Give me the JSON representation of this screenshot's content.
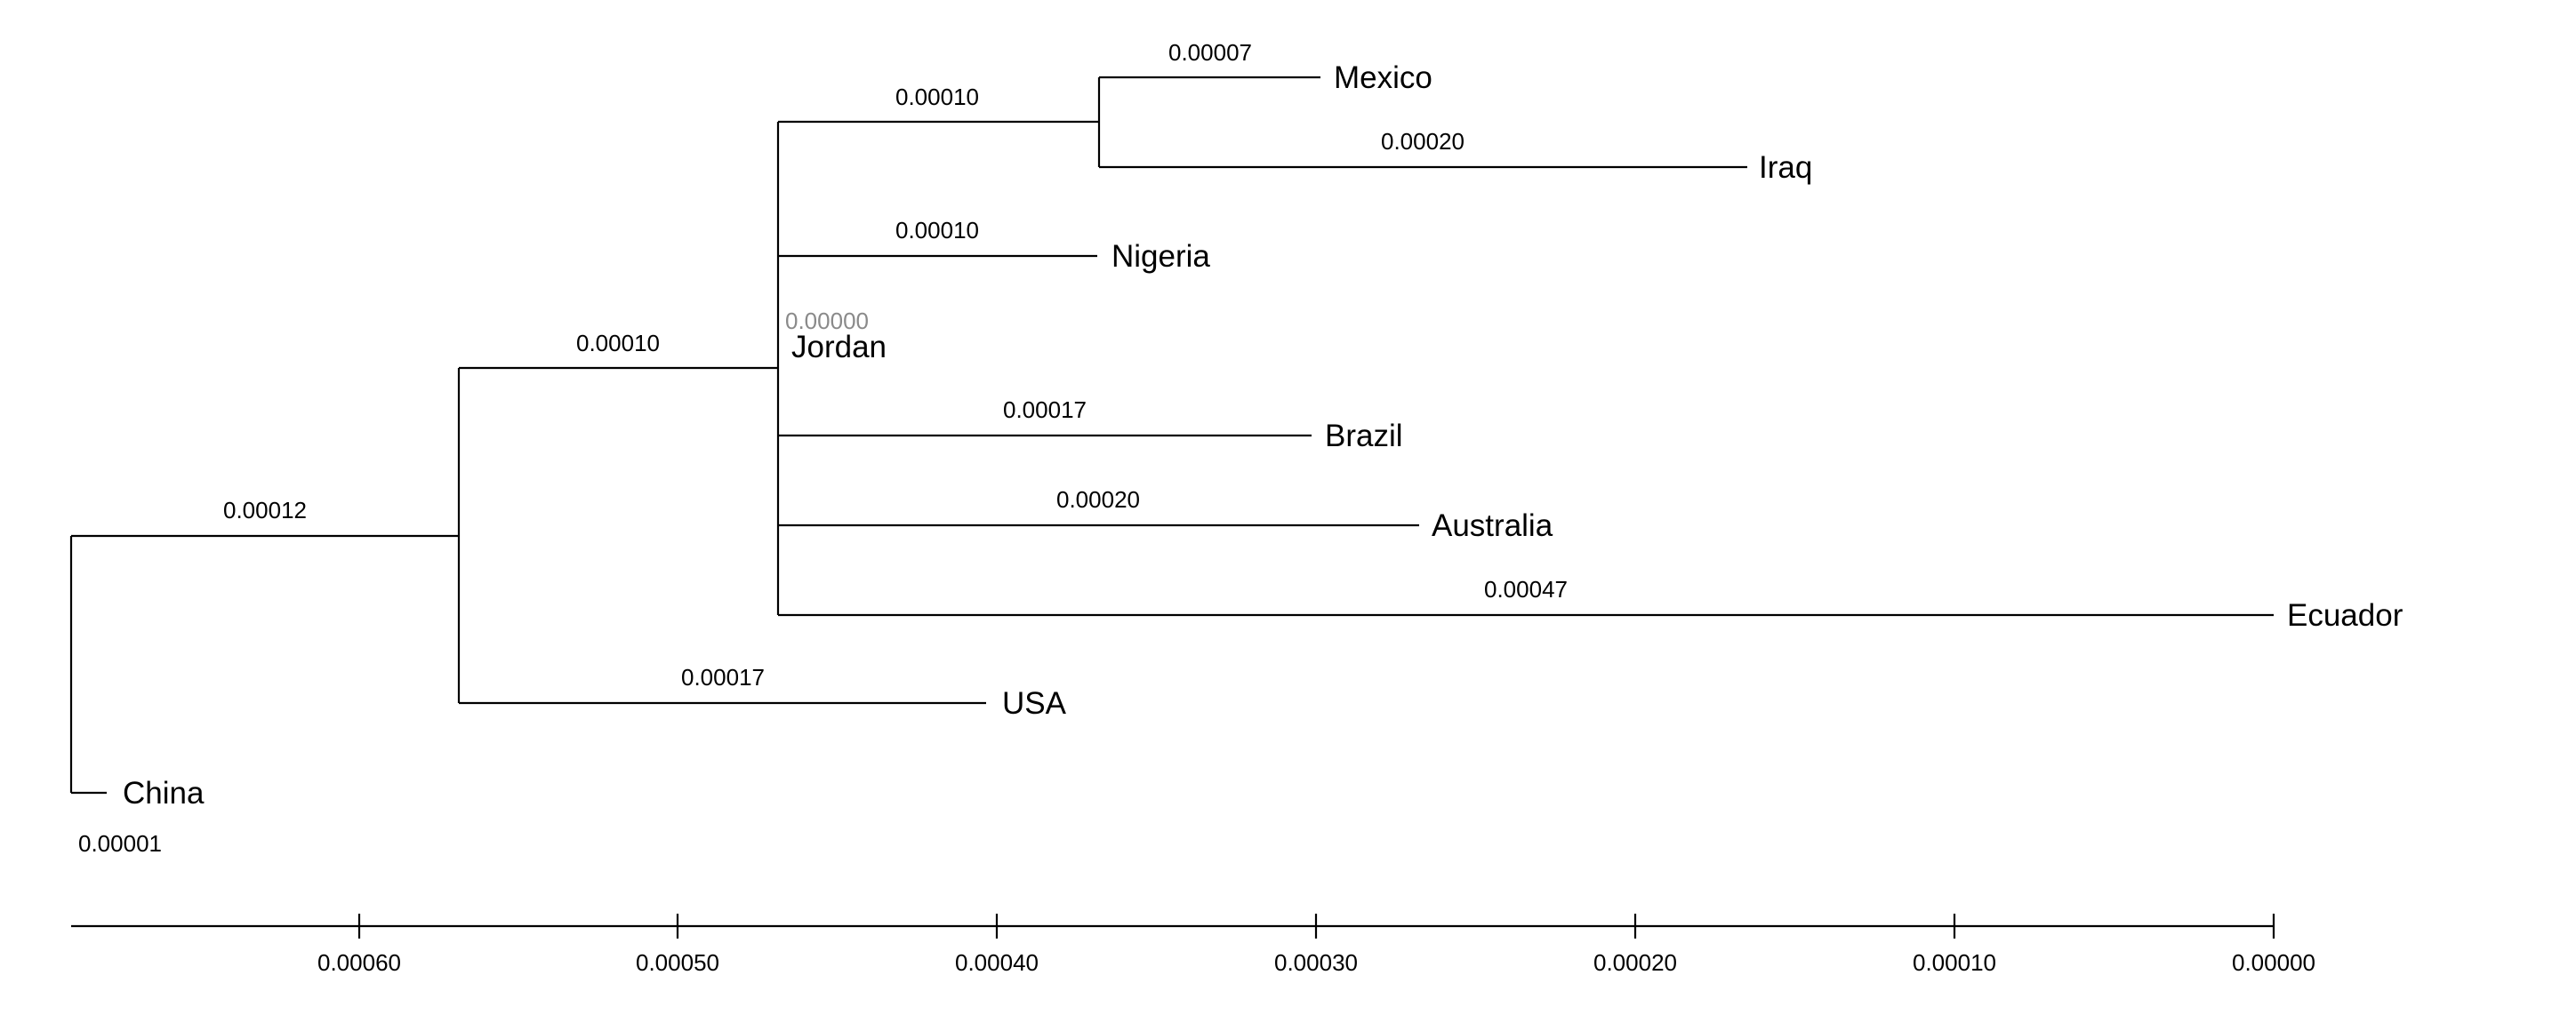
{
  "tree": {
    "leaves": [
      {
        "id": "mexico",
        "name": "Mexico",
        "branch_length_label": "0.00007"
      },
      {
        "id": "iraq",
        "name": "Iraq",
        "branch_length_label": "0.00020"
      },
      {
        "id": "nigeria",
        "name": "Nigeria",
        "branch_length_label": "0.00010"
      },
      {
        "id": "jordan",
        "name": "Jordan",
        "branch_length_label": "0.00000"
      },
      {
        "id": "brazil",
        "name": "Brazil",
        "branch_length_label": "0.00017"
      },
      {
        "id": "australia",
        "name": "Australia",
        "branch_length_label": "0.00020"
      },
      {
        "id": "ecuador",
        "name": "Ecuador",
        "branch_length_label": "0.00047"
      },
      {
        "id": "usa",
        "name": "USA",
        "branch_length_label": "0.00017"
      },
      {
        "id": "china",
        "name": "China",
        "branch_length_label": "0.00001"
      }
    ],
    "internal_branches": [
      {
        "id": "mexico-iraq-clade",
        "branch_length_label": "0.00010"
      },
      {
        "id": "jordan-clade",
        "branch_length_label": "0.00010"
      },
      {
        "id": "usa-group",
        "branch_length_label": "0.00012"
      }
    ]
  },
  "axis": {
    "ticks": [
      "0.00060",
      "0.00050",
      "0.00040",
      "0.00030",
      "0.00020",
      "0.00010",
      "0.00000"
    ]
  }
}
